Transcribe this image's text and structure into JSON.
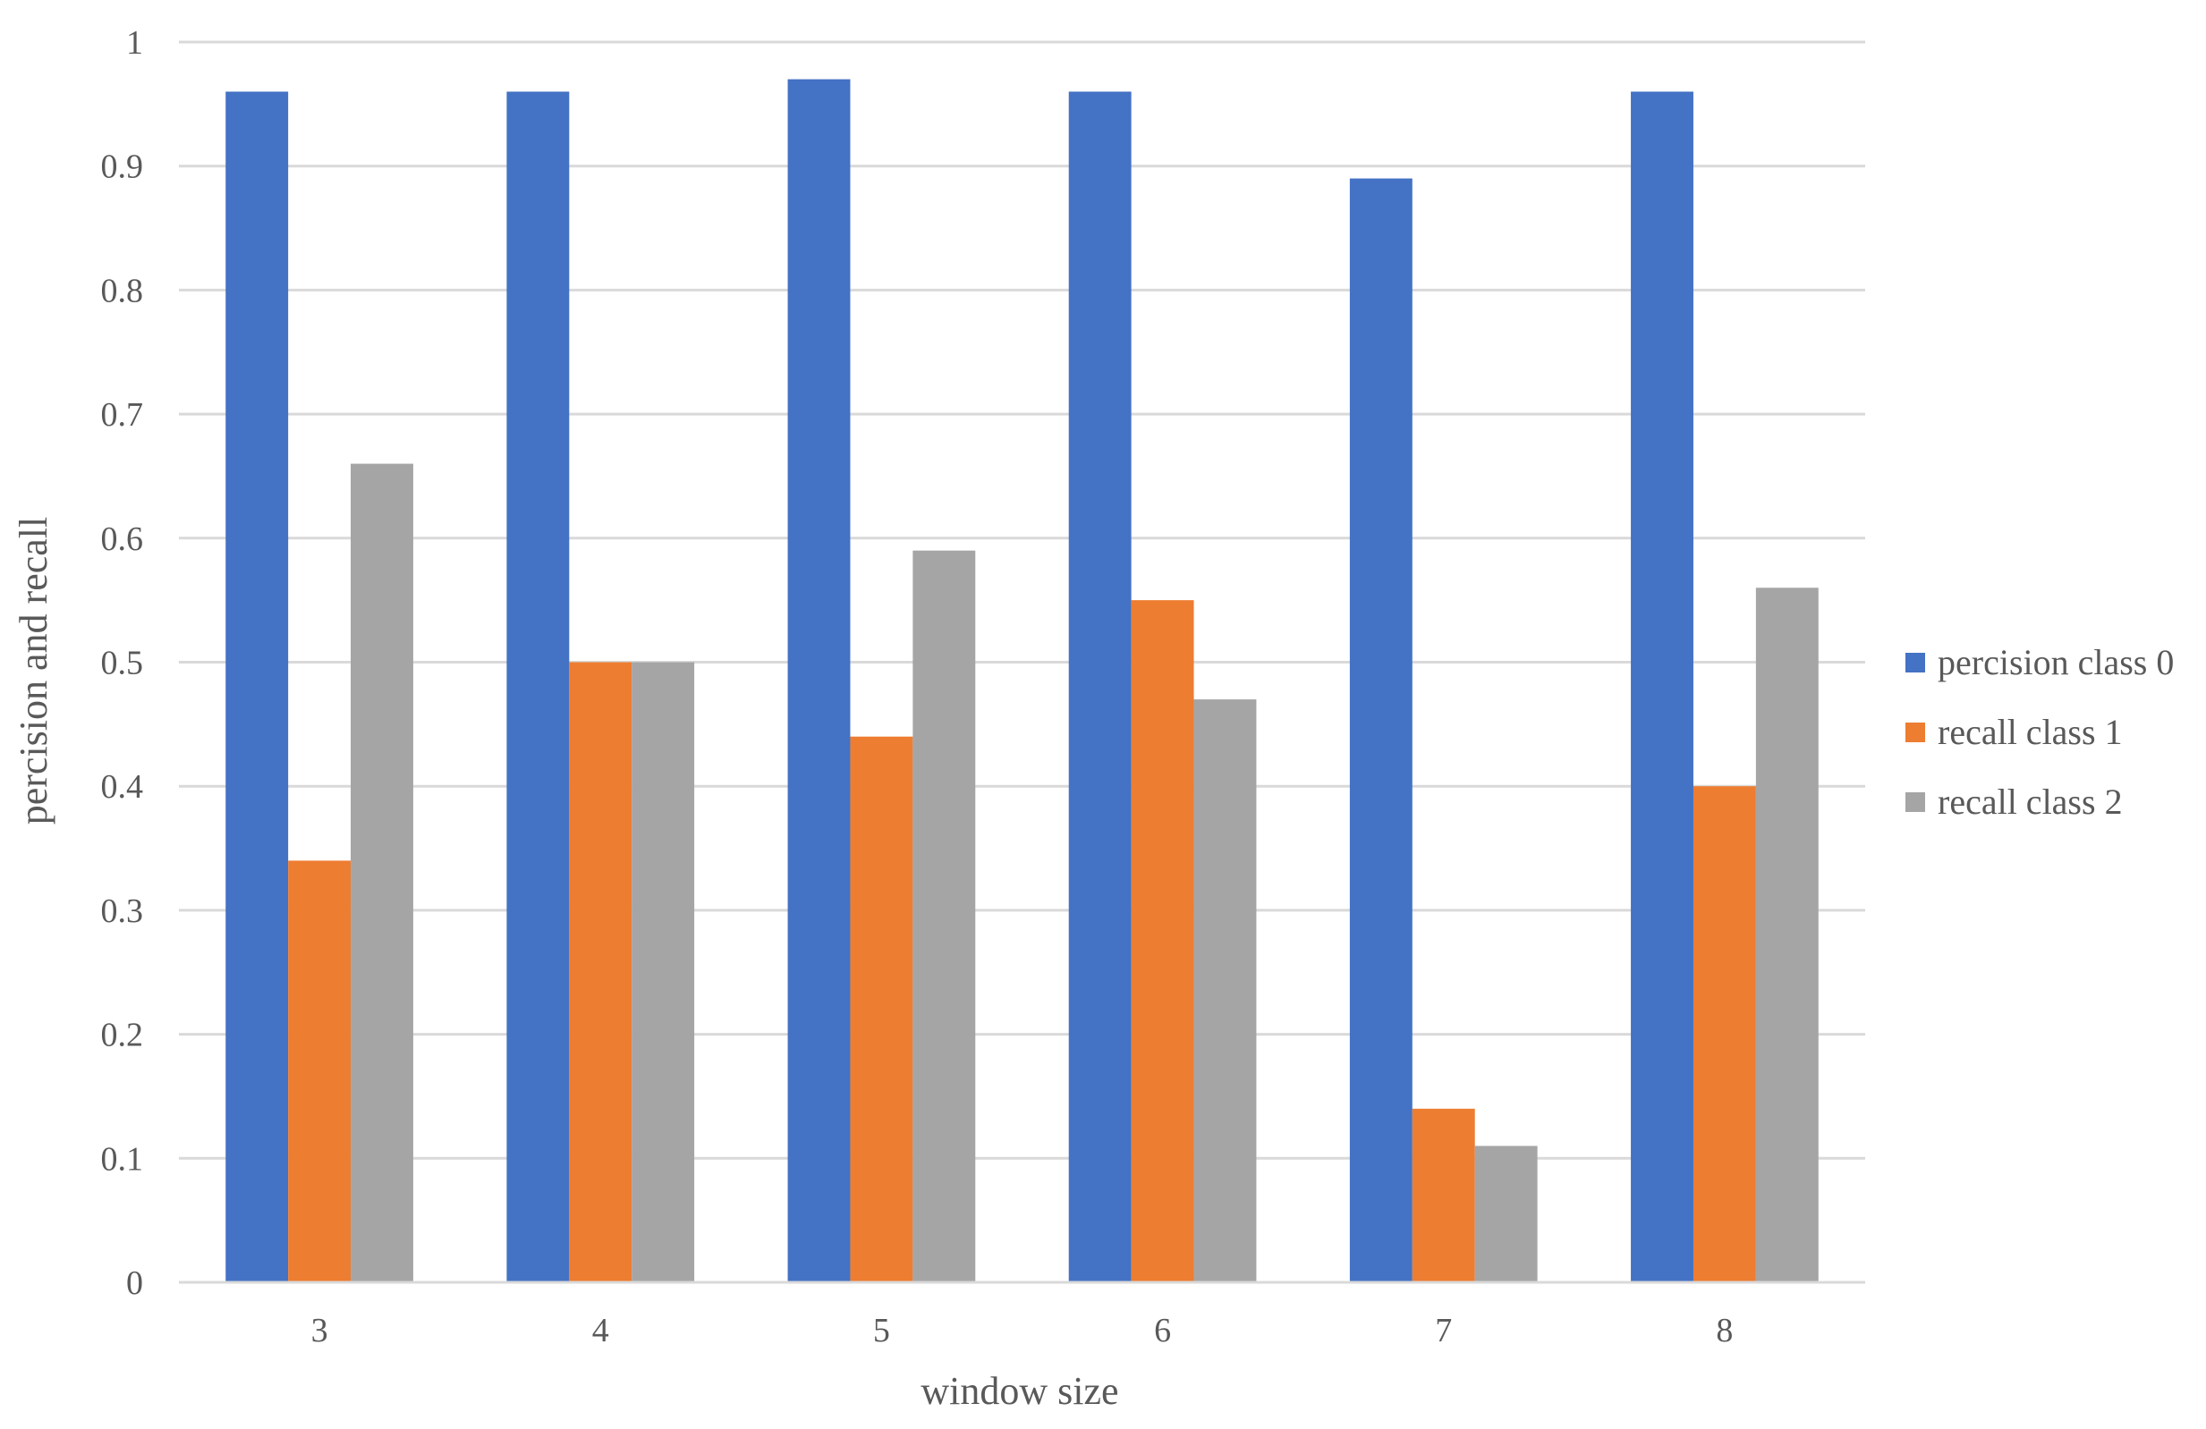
{
  "chart_data": {
    "type": "bar",
    "title": "",
    "xlabel": "window size",
    "ylabel": "percision and recall",
    "categories": [
      "3",
      "4",
      "5",
      "6",
      "7",
      "8"
    ],
    "series": [
      {
        "name": "percision class 0",
        "color": "#4472C4",
        "values": [
          0.96,
          0.96,
          0.97,
          0.96,
          0.89,
          0.96
        ]
      },
      {
        "name": "recall class 1",
        "color": "#ED7D31",
        "values": [
          0.34,
          0.5,
          0.44,
          0.55,
          0.14,
          0.4
        ]
      },
      {
        "name": "recall class 2",
        "color": "#A5A5A5",
        "values": [
          0.66,
          0.5,
          0.59,
          0.47,
          0.11,
          0.56
        ]
      }
    ],
    "ylim": [
      0,
      1
    ],
    "yticks": [
      "0",
      "0.1",
      "0.2",
      "0.3",
      "0.4",
      "0.5",
      "0.6",
      "0.7",
      "0.8",
      "0.9",
      "1"
    ],
    "grid": true,
    "legend_position": "right"
  }
}
